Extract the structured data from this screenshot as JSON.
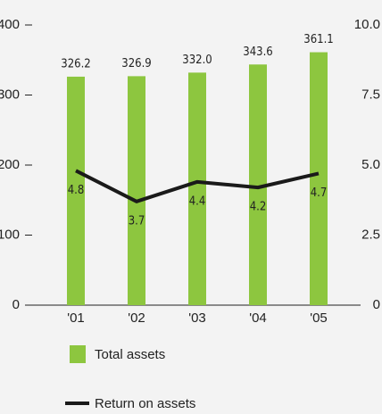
{
  "chart_data": {
    "type": "bar-line",
    "categories": [
      "'01",
      "'02",
      "'03",
      "'04",
      "'05"
    ],
    "series": [
      {
        "name": "Total assets",
        "type": "bar",
        "color": "#8dc63f",
        "values": [
          326.2,
          326.9,
          332.0,
          343.6,
          361.1
        ],
        "value_labels": [
          "326.2",
          "326.9",
          "332.0",
          "343.6",
          "361.1"
        ]
      },
      {
        "name": "Return on assets",
        "type": "line",
        "axis": "y2",
        "color": "#1a1a1a",
        "values": [
          4.8,
          3.7,
          4.4,
          4.2,
          4.7
        ]
      }
    ],
    "ylim": [
      0,
      400
    ],
    "yticks": [
      0,
      100,
      200,
      300,
      400
    ],
    "y2lim": [
      0,
      10
    ],
    "y2ticks": [
      0,
      2.5,
      {
        "value": 5,
        "label": "5.0"
      },
      7.5,
      {
        "value": 10,
        "label": "10.0"
      }
    ],
    "legend": "bottom-left"
  }
}
